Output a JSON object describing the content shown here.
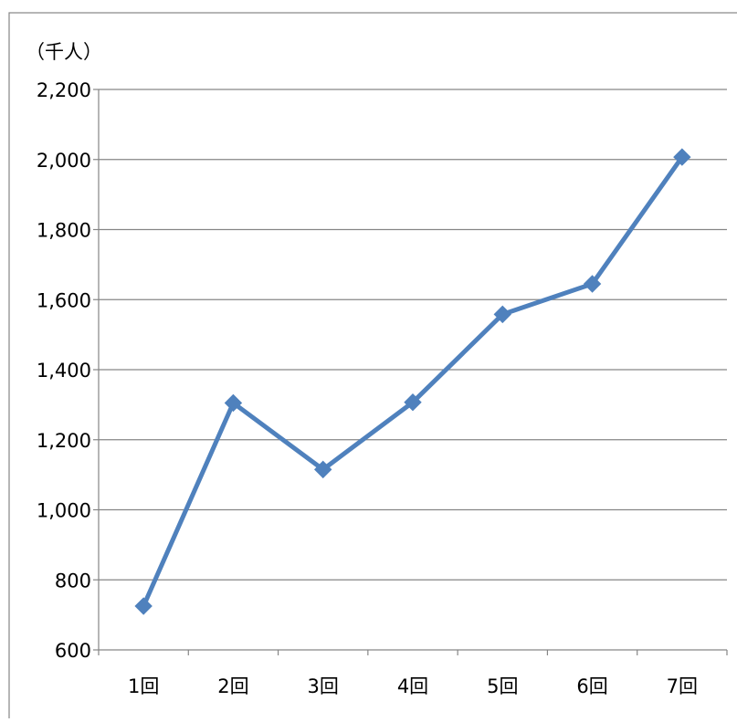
{
  "chart_data": {
    "type": "line",
    "title": "",
    "xlabel": "",
    "ylabel": "",
    "unit_label": "（千人）",
    "categories": [
      "1回",
      "2回",
      "3回",
      "4回",
      "5回",
      "6回",
      "7回"
    ],
    "series": [
      {
        "values": [
          725,
          1305,
          1115,
          1307,
          1558,
          1645,
          2007
        ],
        "color": "#4f81bd"
      }
    ],
    "ylim": [
      600,
      2200
    ],
    "yticks": [
      600,
      800,
      1000,
      1200,
      1400,
      1600,
      1800,
      2000,
      2200
    ],
    "ytick_labels": [
      "600",
      "800",
      "1,000",
      "1,200",
      "1,400",
      "1,600",
      "1,800",
      "2,000",
      "2,200"
    ],
    "grid": true,
    "legend": "none",
    "marker": "diamond"
  }
}
